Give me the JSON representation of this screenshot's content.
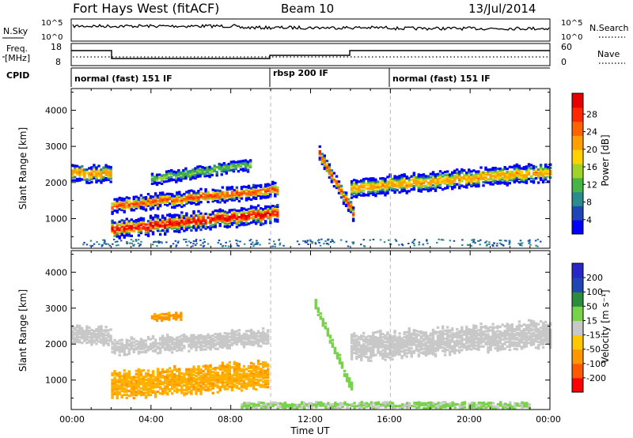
{
  "header": {
    "radar": "Fort Hays West (fitACF)",
    "beam": "Beam 10",
    "date": "13/Jul/2014"
  },
  "noise_panel": {
    "left_label": "N.Sky",
    "right_label": "N.Search",
    "left_ticks": [
      "10^5",
      "10^0"
    ],
    "right_ticks": [
      "10^5",
      "10^0"
    ]
  },
  "freq_panel": {
    "left_label_1": "Freq.",
    "left_label_2": "[MHz]",
    "right_label": "Nave",
    "left_ticks": [
      "18",
      "8"
    ],
    "right_ticks": [
      "60",
      "0"
    ]
  },
  "cpid": {
    "label": "CPID",
    "segments": [
      {
        "name": "normal (fast) 151 IF",
        "start_h": 0,
        "end_h": 10
      },
      {
        "name": "rbsp 200 IF",
        "start_h": 10,
        "end_h": 16
      },
      {
        "name": "normal (fast) 151 IF",
        "start_h": 16,
        "end_h": 24
      }
    ]
  },
  "axes": {
    "ylabel": "Slant Range [km]",
    "xlabel": "Time UT",
    "x_ticks": [
      "00:00",
      "04:00",
      "08:00",
      "12:00",
      "16:00",
      "20:00",
      "00:00"
    ],
    "y_ticks": [
      "1000",
      "2000",
      "3000",
      "4000"
    ]
  },
  "power_colorbar": {
    "label": "Power [dB]",
    "ticks": [
      "28",
      "24",
      "20",
      "16",
      "12",
      "8",
      "4"
    ],
    "colors": [
      "#0000ff",
      "#1e46b4",
      "#2a8c8c",
      "#46b446",
      "#a0d22a",
      "#ffd200",
      "#ffa000",
      "#ff6400",
      "#ff2800",
      "#e60000"
    ]
  },
  "velocity_colorbar": {
    "label": "Velocity [m s⁻¹]",
    "ticks": [
      "200",
      "100",
      "50",
      "15",
      "-15",
      "-50",
      "-100",
      "-200"
    ],
    "colors": [
      "#ff0000",
      "#ff5a00",
      "#ff9600",
      "#ffc800",
      "#c8c8c8",
      "#78d24a",
      "#2a8c3c",
      "#1e46b4",
      "#2828c8"
    ]
  },
  "chart_data": [
    {
      "type": "heatmap",
      "title": "Power",
      "xlabel": "Time UT",
      "ylabel": "Slant Range [km]",
      "xlim": [
        0,
        24
      ],
      "ylim": [
        180,
        4600
      ],
      "colorbar": "Power [dB]",
      "features": [
        {
          "start_h": 0.0,
          "end_h": 2.0,
          "center_km": 2250,
          "half_width_km": 170,
          "peak_db": 20
        },
        {
          "start_h": 2.0,
          "end_h": 10.3,
          "center_start_km": 700,
          "center_end_km": 1150,
          "half_width_km": 180,
          "peak_db": 28
        },
        {
          "start_h": 2.0,
          "end_h": 10.3,
          "center_start_km": 1350,
          "center_end_km": 1800,
          "half_width_km": 140,
          "peak_db": 24
        },
        {
          "start_h": 4.0,
          "end_h": 9.0,
          "center_start_km": 2100,
          "center_end_km": 2500,
          "half_width_km": 120,
          "peak_db": 12
        },
        {
          "start_h": 12.4,
          "end_h": 14.1,
          "center_start_km": 2800,
          "center_end_km": 1150,
          "half_width_km": 150,
          "peak_db": 24
        },
        {
          "start_h": 14.0,
          "end_h": 24.0,
          "center_start_km": 1850,
          "center_end_km": 2300,
          "half_width_km": 180,
          "peak_db": 20
        }
      ]
    },
    {
      "type": "heatmap",
      "title": "Velocity",
      "xlabel": "Time UT",
      "ylabel": "Slant Range [km]",
      "xlim": [
        0,
        24
      ],
      "ylim": [
        180,
        4600
      ],
      "colorbar": "Velocity [m s⁻¹]",
      "features": [
        {
          "start_h": 0.0,
          "end_h": 2.0,
          "center_km": 2250,
          "half_width_km": 180,
          "velocity": 0
        },
        {
          "start_h": 2.0,
          "end_h": 9.9,
          "center_start_km": 850,
          "center_end_km": 1150,
          "half_width_km": 260,
          "velocity": -60
        },
        {
          "start_h": 2.0,
          "end_h": 9.9,
          "center_start_km": 1900,
          "center_end_km": 2200,
          "half_width_km": 160,
          "velocity": 0
        },
        {
          "start_h": 4.0,
          "end_h": 5.5,
          "center_km": 2750,
          "half_width_km": 70,
          "velocity": -80
        },
        {
          "start_h": 12.2,
          "end_h": 14.0,
          "center_start_km": 3100,
          "center_end_km": 800,
          "half_width_km": 100,
          "velocity": 40
        },
        {
          "start_h": 14.0,
          "end_h": 24.0,
          "center_start_km": 1900,
          "center_end_km": 2300,
          "half_width_km": 260,
          "velocity": 0
        },
        {
          "start_h": 8.5,
          "end_h": 23.0,
          "center_km": 300,
          "half_width_km": 60,
          "velocity": 30
        }
      ]
    }
  ]
}
